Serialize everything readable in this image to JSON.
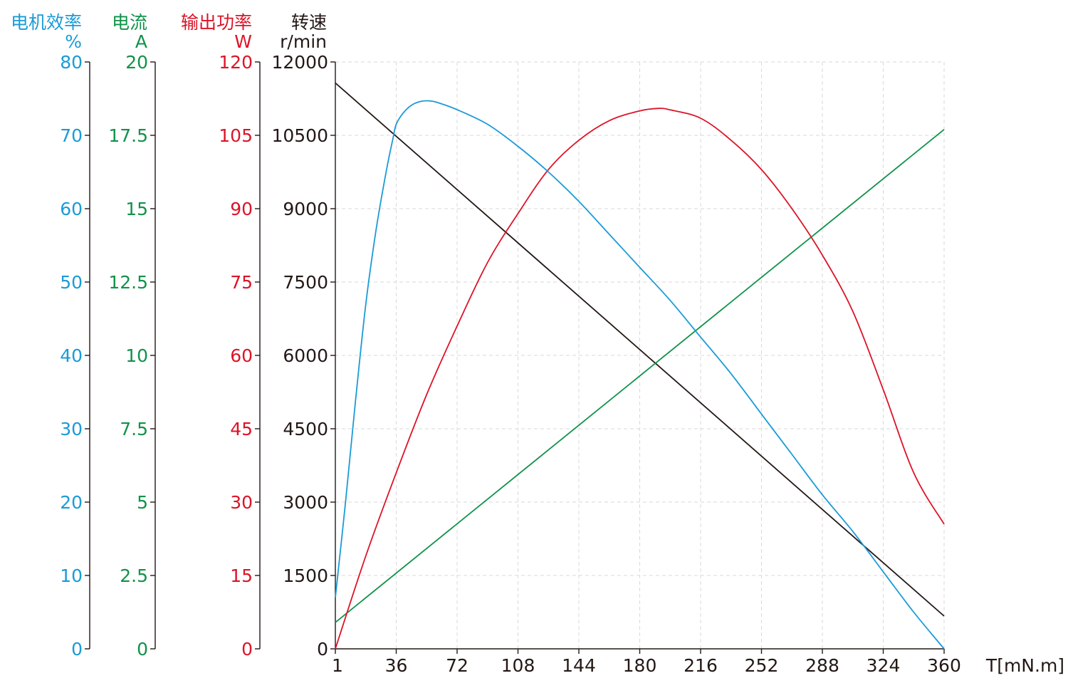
{
  "chart_data": {
    "type": "line",
    "xlabel": "T[mN.m]",
    "x_ticks": [
      "1",
      "36",
      "72",
      "108",
      "144",
      "180",
      "216",
      "252",
      "288",
      "324",
      "360"
    ],
    "xlim": [
      0,
      360
    ],
    "grid": true,
    "axes": [
      {
        "id": "efficiency",
        "title": "电机效率",
        "unit": "%",
        "color": "#1a9bd7",
        "ylim": [
          0,
          80
        ],
        "ticks": [
          "0",
          "10",
          "20",
          "30",
          "40",
          "50",
          "60",
          "70",
          "80"
        ]
      },
      {
        "id": "current",
        "title": "电流",
        "unit": "A",
        "color": "#11924a",
        "ylim": [
          0,
          20
        ],
        "ticks": [
          "0",
          "2.5",
          "5",
          "7.5",
          "10",
          "12.5",
          "15",
          "17.5",
          "20"
        ]
      },
      {
        "id": "power",
        "title": "输出功率",
        "unit": "W",
        "color": "#dc1428",
        "ylim": [
          0,
          120
        ],
        "ticks": [
          "0",
          "15",
          "30",
          "45",
          "60",
          "75",
          "90",
          "105",
          "120"
        ]
      },
      {
        "id": "speed",
        "title": "转速",
        "unit": "r/min",
        "color": "#231815",
        "ylim": [
          0,
          12000
        ],
        "ticks": [
          "0",
          "1500",
          "3000",
          "4500",
          "6000",
          "7500",
          "9000",
          "10500",
          "12000"
        ]
      }
    ],
    "series": [
      {
        "axis": "speed",
        "color": "#231815",
        "x": [
          0,
          360
        ],
        "y": [
          11570,
          670
        ]
      },
      {
        "axis": "current",
        "color": "#11924a",
        "x": [
          0,
          360
        ],
        "y": [
          0.9,
          17.7
        ]
      },
      {
        "axis": "power",
        "color": "#dc1428",
        "x": [
          0,
          18,
          36,
          54,
          72,
          90,
          108,
          126,
          144,
          162,
          180,
          191,
          198,
          216,
          234,
          252,
          270,
          288,
          306,
          324,
          342,
          360
        ],
        "y": [
          0,
          19,
          36,
          52,
          66,
          79,
          89,
          98,
          104,
          108,
          110,
          110.5,
          110.2,
          108.5,
          104,
          98,
          90,
          80.5,
          69,
          53,
          36,
          25.5
        ]
      },
      {
        "axis": "efficiency",
        "color": "#1a9bd7",
        "x": [
          0,
          6,
          12,
          18,
          24,
          30,
          34,
          36,
          40,
          45,
          50,
          55,
          60,
          72,
          90,
          108,
          126,
          144,
          162,
          180,
          198,
          216,
          234,
          252,
          270,
          288,
          306,
          324,
          342,
          360
        ],
        "y": [
          7,
          20,
          34,
          47,
          57,
          65,
          69.5,
          71.5,
          73,
          74.1,
          74.6,
          74.7,
          74.5,
          73.5,
          71.5,
          68.5,
          65,
          61,
          56.5,
          52,
          47.5,
          42.5,
          37.5,
          32,
          26.5,
          21,
          16,
          10.5,
          5,
          0
        ]
      }
    ]
  }
}
